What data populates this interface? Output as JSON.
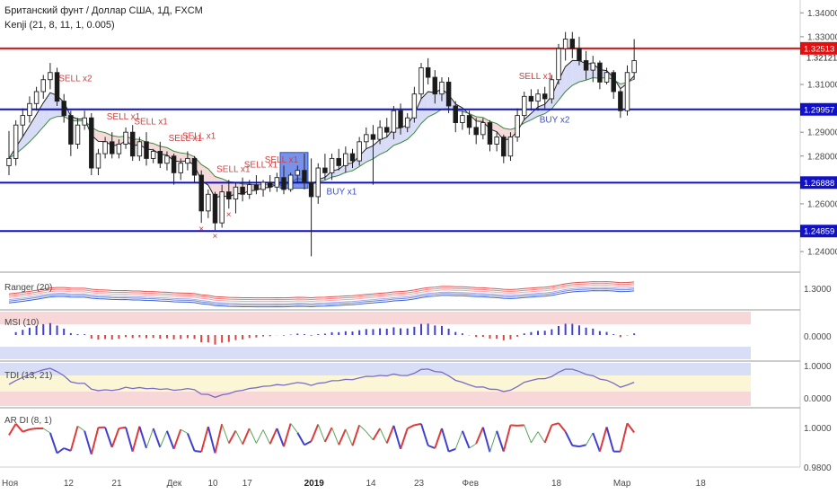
{
  "header": {
    "title": "Британский фунт / Доллар США, 1Д, FXCM",
    "indicator": "Kenji (21, 8, 11, 1, 0.005)"
  },
  "price_tags": [
    {
      "text": "1.32513",
      "value": 1.32513,
      "style": "red"
    },
    {
      "text": "1.32121",
      "value": 1.32121,
      "style": "plain"
    },
    {
      "text": "1.29957",
      "value": 1.29957,
      "style": "blue"
    },
    {
      "text": "1.26888",
      "value": 1.26888,
      "style": "blue"
    },
    {
      "text": "1.24859",
      "value": 1.24859,
      "style": "blue"
    }
  ],
  "panels": {
    "ranger": {
      "label": "Ranger (20)",
      "ticks": [
        "1.3000"
      ]
    },
    "msi": {
      "label": "MSI (10)",
      "ticks": [
        "0.0000"
      ]
    },
    "tdi": {
      "label": "TDI (13, 21)",
      "ticks": [
        "1.0000",
        "0.0000"
      ]
    },
    "ardi": {
      "label": "AR DI (8, 1)",
      "ticks": [
        "1.0000",
        "0.9800"
      ]
    }
  },
  "chart_data": {
    "type": "candlestick",
    "symbol": "GBPUSD",
    "timeframe": "1D",
    "ylim": [
      1.2325,
      1.3435
    ],
    "yticks": [
      "1.34000",
      "1.33000",
      "1.31000",
      "1.29000",
      "1.28000",
      "1.26000",
      "1.24000"
    ],
    "yticks_values": [
      1.34,
      1.33,
      1.31,
      1.29,
      1.28,
      1.26,
      1.24
    ],
    "x_labels": [
      {
        "text": "Ноя",
        "index": 0
      },
      {
        "text": "12",
        "index": 9
      },
      {
        "text": "21",
        "index": 16
      },
      {
        "text": "Дек",
        "index": 24
      },
      {
        "text": "10",
        "index": 30
      },
      {
        "text": "17",
        "index": 35
      },
      {
        "text": "2019",
        "index": 44,
        "bold": true
      },
      {
        "text": "14",
        "index": 53
      },
      {
        "text": "23",
        "index": 60
      },
      {
        "text": "Фев",
        "index": 67
      },
      {
        "text": "18",
        "index": 80
      },
      {
        "text": "Мар",
        "index": 89
      },
      {
        "text": "18",
        "index": 101
      }
    ],
    "horizontal_lines": [
      {
        "value": 1.32513,
        "color": "#e01010"
      },
      {
        "value": 1.29957,
        "color": "#1010c8"
      },
      {
        "value": 1.26888,
        "color": "#1010c8"
      },
      {
        "value": 1.24859,
        "color": "#1010c8"
      }
    ],
    "candles": [
      [
        1.276,
        1.2905,
        1.272,
        1.279
      ],
      [
        1.279,
        1.295,
        1.276,
        1.293
      ],
      [
        1.293,
        1.3,
        1.288,
        1.297
      ],
      [
        1.297,
        1.305,
        1.294,
        1.302
      ],
      [
        1.302,
        1.309,
        1.299,
        1.307
      ],
      [
        1.307,
        1.314,
        1.304,
        1.312
      ],
      [
        1.312,
        1.319,
        1.308,
        1.315
      ],
      [
        1.315,
        1.317,
        1.301,
        1.303
      ],
      [
        1.303,
        1.306,
        1.294,
        1.297
      ],
      [
        1.297,
        1.299,
        1.28,
        1.285
      ],
      [
        1.285,
        1.296,
        1.283,
        1.293
      ],
      [
        1.293,
        1.299,
        1.291,
        1.296
      ],
      [
        1.296,
        1.298,
        1.272,
        1.275
      ],
      [
        1.275,
        1.283,
        1.272,
        1.281
      ],
      [
        1.281,
        1.288,
        1.279,
        1.286
      ],
      [
        1.286,
        1.29,
        1.279,
        1.281
      ],
      [
        1.281,
        1.287,
        1.279,
        1.285
      ],
      [
        1.285,
        1.292,
        1.283,
        1.29
      ],
      [
        1.29,
        1.293,
        1.278,
        1.28
      ],
      [
        1.28,
        1.288,
        1.278,
        1.286
      ],
      [
        1.286,
        1.29,
        1.276,
        1.279
      ],
      [
        1.279,
        1.283,
        1.277,
        1.282
      ],
      [
        1.282,
        1.286,
        1.275,
        1.277
      ],
      [
        1.277,
        1.282,
        1.274,
        1.28
      ],
      [
        1.28,
        1.281,
        1.268,
        1.273
      ],
      [
        1.273,
        1.279,
        1.27,
        1.277
      ],
      [
        1.277,
        1.282,
        1.274,
        1.279
      ],
      [
        1.279,
        1.28,
        1.269,
        1.272
      ],
      [
        1.272,
        1.274,
        1.252,
        1.257
      ],
      [
        1.257,
        1.266,
        1.254,
        1.264
      ],
      [
        1.264,
        1.265,
        1.249,
        1.252
      ],
      [
        1.252,
        1.268,
        1.25,
        1.265
      ],
      [
        1.265,
        1.27,
        1.258,
        1.262
      ],
      [
        1.262,
        1.269,
        1.256,
        1.267
      ],
      [
        1.267,
        1.271,
        1.261,
        1.264
      ],
      [
        1.264,
        1.27,
        1.262,
        1.268
      ],
      [
        1.268,
        1.272,
        1.264,
        1.266
      ],
      [
        1.266,
        1.27,
        1.263,
        1.269
      ],
      [
        1.269,
        1.272,
        1.265,
        1.267
      ],
      [
        1.267,
        1.273,
        1.265,
        1.271
      ],
      [
        1.271,
        1.276,
        1.264,
        1.266
      ],
      [
        1.266,
        1.273,
        1.265,
        1.272
      ],
      [
        1.272,
        1.276,
        1.269,
        1.274
      ],
      [
        1.274,
        1.281,
        1.266,
        1.269
      ],
      [
        1.269,
        1.279,
        1.238,
        1.263
      ],
      [
        1.263,
        1.277,
        1.26,
        1.275
      ],
      [
        1.275,
        1.281,
        1.27,
        1.273
      ],
      [
        1.273,
        1.281,
        1.27,
        1.279
      ],
      [
        1.279,
        1.283,
        1.274,
        1.276
      ],
      [
        1.276,
        1.284,
        1.273,
        1.281
      ],
      [
        1.281,
        1.283,
        1.275,
        1.278
      ],
      [
        1.278,
        1.288,
        1.276,
        1.286
      ],
      [
        1.286,
        1.292,
        1.283,
        1.289
      ],
      [
        1.289,
        1.293,
        1.268,
        1.287
      ],
      [
        1.287,
        1.295,
        1.285,
        1.292
      ],
      [
        1.292,
        1.296,
        1.288,
        1.29
      ],
      [
        1.29,
        1.301,
        1.287,
        1.299
      ],
      [
        1.299,
        1.302,
        1.289,
        1.292
      ],
      [
        1.292,
        1.298,
        1.29,
        1.296
      ],
      [
        1.296,
        1.309,
        1.294,
        1.306
      ],
      [
        1.306,
        1.319,
        1.304,
        1.317
      ],
      [
        1.317,
        1.321,
        1.31,
        1.313
      ],
      [
        1.313,
        1.316,
        1.302,
        1.306
      ],
      [
        1.306,
        1.313,
        1.303,
        1.311
      ],
      [
        1.311,
        1.313,
        1.298,
        1.301
      ],
      [
        1.301,
        1.303,
        1.29,
        1.294
      ],
      [
        1.294,
        1.299,
        1.291,
        1.297
      ],
      [
        1.297,
        1.299,
        1.289,
        1.292
      ],
      [
        1.292,
        1.296,
        1.285,
        1.289
      ],
      [
        1.289,
        1.296,
        1.287,
        1.294
      ],
      [
        1.294,
        1.295,
        1.282,
        1.285
      ],
      [
        1.285,
        1.29,
        1.282,
        1.288
      ],
      [
        1.288,
        1.289,
        1.277,
        1.28
      ],
      [
        1.28,
        1.29,
        1.278,
        1.288
      ],
      [
        1.288,
        1.3,
        1.286,
        1.297
      ],
      [
        1.297,
        1.307,
        1.295,
        1.305
      ],
      [
        1.305,
        1.308,
        1.299,
        1.303
      ],
      [
        1.303,
        1.308,
        1.299,
        1.306
      ],
      [
        1.306,
        1.309,
        1.3,
        1.304
      ],
      [
        1.304,
        1.314,
        1.302,
        1.312
      ],
      [
        1.312,
        1.327,
        1.31,
        1.325
      ],
      [
        1.325,
        1.332,
        1.32,
        1.329
      ],
      [
        1.329,
        1.332,
        1.321,
        1.325
      ],
      [
        1.325,
        1.33,
        1.318,
        1.32
      ],
      [
        1.32,
        1.324,
        1.312,
        1.316
      ],
      [
        1.316,
        1.322,
        1.311,
        1.319
      ],
      [
        1.319,
        1.32,
        1.308,
        1.311
      ],
      [
        1.311,
        1.317,
        1.31,
        1.315
      ],
      [
        1.315,
        1.316,
        1.304,
        1.307
      ],
      [
        1.307,
        1.308,
        1.296,
        1.299
      ],
      [
        1.299,
        1.318,
        1.297,
        1.315
      ],
      [
        1.315,
        1.329,
        1.312,
        1.32
      ]
    ],
    "signals": [
      {
        "text": "SELL x2",
        "index": 8
      },
      {
        "text": "SELL x1",
        "index": 15
      },
      {
        "text": "SELL x1",
        "index": 19
      },
      {
        "text": "SELL x1",
        "index": 24
      },
      {
        "text": "SELL x1",
        "index": 26
      },
      {
        "text": "SELL x1",
        "index": 31
      },
      {
        "text": "SELL x1",
        "index": 35
      },
      {
        "text": "SELL x1",
        "index": 38
      },
      {
        "text": "BUY x1",
        "index": 47
      },
      {
        "text": "SELL x1",
        "index": 75
      },
      {
        "text": "BUY x2",
        "index": 78
      }
    ],
    "box": {
      "start_index": 40,
      "end_index": 43,
      "top": 1.2815,
      "bottom": 1.2665
    }
  }
}
